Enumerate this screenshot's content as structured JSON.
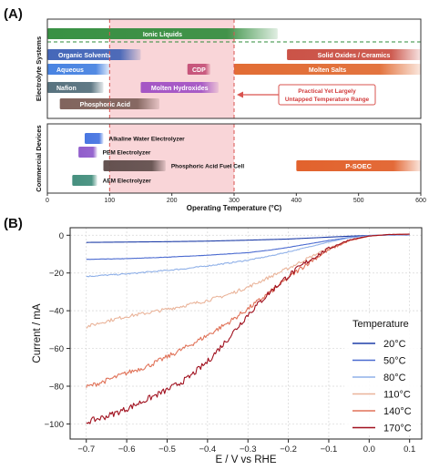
{
  "panels": {
    "a_label": "(A)",
    "b_label": "(B)"
  },
  "chart_data": [
    {
      "type": "range-bar",
      "panel": "A",
      "xlabel": "Operating Temperature (°C)",
      "xlim": [
        0,
        600
      ],
      "xticks": [
        0,
        100,
        200,
        300,
        400,
        500,
        600
      ],
      "highlight_range": [
        100,
        300
      ],
      "groups": [
        {
          "label": "Electrolyte Systems",
          "bars": [
            {
              "label": "Ionic Liquids",
              "start": 0,
              "end": 370,
              "color": "#2e8b3a",
              "label_inside": true
            },
            {
              "label": "Organic Solvents",
              "start": 0,
              "end": 150,
              "color": "#3b5fb5",
              "label_inside": true
            },
            {
              "label": "Solid Oxides / Ceramics",
              "start": 385,
              "end": 600,
              "color": "#c84a3e",
              "label_inside": true
            },
            {
              "label": "Aqueous",
              "start": 0,
              "end": 100,
              "color": "#3f7de0",
              "label_inside": true
            },
            {
              "label": "CDP",
              "start": 225,
              "end": 262,
              "color": "#c44e76",
              "label_inside": true
            },
            {
              "label": "Molten Salts",
              "start": 300,
              "end": 600,
              "color": "#e0652a",
              "label_inside": true
            },
            {
              "label": "Nafion",
              "start": 0,
              "end": 90,
              "color": "#4f6b78",
              "label_inside": true
            },
            {
              "label": "Molten Hydroxides",
              "start": 150,
              "end": 275,
              "color": "#a04fc4",
              "label_inside": true
            },
            {
              "label": "Phosphoric Acid",
              "start": 20,
              "end": 180,
              "color": "#7a5c55",
              "label_inside": true
            }
          ],
          "dashed_line_label": "",
          "annotation": [
            "Practical Yet Largely",
            "Untapped Temperature Range"
          ]
        },
        {
          "label": "Commercial Devices",
          "bars": [
            {
              "label": "Alkaline Water Electrolyzer",
              "start": 60,
              "end": 90,
              "color": "#3f6fe0",
              "label_inside": false
            },
            {
              "label": "PEM Electrolyzer",
              "start": 50,
              "end": 80,
              "color": "#8b55c9",
              "label_inside": false
            },
            {
              "label": "Phosphoric Acid Fuel Cell",
              "start": 90,
              "end": 190,
              "color": "#5c4a48",
              "label_inside": false
            },
            {
              "label": "P-SOEC",
              "start": 400,
              "end": 600,
              "color": "#e05a22",
              "label_inside": true
            },
            {
              "label": "AEM Electrolyzer",
              "start": 40,
              "end": 80,
              "color": "#3c8a78",
              "label_inside": false
            }
          ]
        }
      ]
    },
    {
      "type": "line",
      "panel": "B",
      "xlabel": "E / V vs RHE",
      "ylabel": "Current / mA",
      "xlim": [
        -0.74,
        0.13
      ],
      "ylim": [
        -108,
        4
      ],
      "xticks": [
        -0.7,
        -0.6,
        -0.5,
        -0.4,
        -0.3,
        -0.2,
        -0.1,
        0.0,
        0.1
      ],
      "xtick_labels": [
        "−0.7",
        "−0.6",
        "−0.5",
        "−0.4",
        "−0.3",
        "−0.2",
        "−0.1",
        "0.0",
        "0.1"
      ],
      "yticks": [
        0,
        -20,
        -40,
        -60,
        -80,
        -100
      ],
      "ytick_labels": [
        "0",
        "−20",
        "−40",
        "−60",
        "−80",
        "−100"
      ],
      "grid": true,
      "legend": {
        "title": "Temperature",
        "placement": "right"
      },
      "series": [
        {
          "name": "20°C",
          "color": "#1f3ea8",
          "noise": 0.0,
          "x": [
            -0.7,
            -0.6,
            -0.5,
            -0.4,
            -0.3,
            -0.2,
            -0.1,
            -0.05,
            0.0,
            0.05,
            0.1
          ],
          "y": [
            -3.8,
            -3.6,
            -3.4,
            -3.1,
            -2.6,
            -2.0,
            -1.0,
            -0.5,
            -0.1,
            0.1,
            0.2
          ]
        },
        {
          "name": "50°C",
          "color": "#4a6ad0",
          "noise": 0.1,
          "x": [
            -0.7,
            -0.6,
            -0.5,
            -0.4,
            -0.3,
            -0.25,
            -0.2,
            -0.15,
            -0.1,
            -0.05,
            0.0,
            0.05,
            0.1
          ],
          "y": [
            -12.8,
            -12.4,
            -11.6,
            -10.6,
            -9.2,
            -8.0,
            -6.4,
            -4.6,
            -2.8,
            -1.2,
            -0.2,
            0.2,
            0.3
          ]
        },
        {
          "name": "80°C",
          "color": "#8fb0e8",
          "noise": 0.35,
          "x": [
            -0.7,
            -0.6,
            -0.5,
            -0.45,
            -0.4,
            -0.35,
            -0.3,
            -0.25,
            -0.2,
            -0.15,
            -0.1,
            -0.05,
            0.0,
            0.05,
            0.1
          ],
          "y": [
            -21.8,
            -20.5,
            -18.6,
            -17.6,
            -16.2,
            -14.8,
            -13.2,
            -11.2,
            -8.8,
            -6.2,
            -3.6,
            -1.4,
            -0.2,
            0.3,
            0.4
          ]
        },
        {
          "name": "110°C",
          "color": "#eab49a",
          "noise": 0.9,
          "x": [
            -0.7,
            -0.65,
            -0.6,
            -0.55,
            -0.5,
            -0.45,
            -0.4,
            -0.35,
            -0.3,
            -0.25,
            -0.2,
            -0.15,
            -0.1,
            -0.05,
            0.0,
            0.05,
            0.1
          ],
          "y": [
            -48.5,
            -45.5,
            -43.0,
            -41.2,
            -39.2,
            -37.0,
            -34.5,
            -31.5,
            -27.5,
            -22.5,
            -17.5,
            -12.0,
            -6.8,
            -2.8,
            -0.4,
            0.4,
            0.5
          ]
        },
        {
          "name": "140°C",
          "color": "#e07258",
          "noise": 1.3,
          "x": [
            -0.7,
            -0.65,
            -0.6,
            -0.55,
            -0.5,
            -0.45,
            -0.4,
            -0.35,
            -0.3,
            -0.25,
            -0.2,
            -0.15,
            -0.1,
            -0.05,
            0.0,
            0.05,
            0.1
          ],
          "y": [
            -80.5,
            -77.0,
            -73.0,
            -69.5,
            -64.5,
            -59.0,
            -53.0,
            -46.5,
            -39.0,
            -31.0,
            -22.5,
            -14.5,
            -7.8,
            -3.0,
            -0.5,
            0.4,
            0.6
          ]
        },
        {
          "name": "170°C",
          "color": "#a0101e",
          "noise": 1.6,
          "x": [
            -0.7,
            -0.65,
            -0.6,
            -0.55,
            -0.5,
            -0.45,
            -0.4,
            -0.35,
            -0.3,
            -0.25,
            -0.2,
            -0.15,
            -0.1,
            -0.05,
            0.0,
            0.05,
            0.1
          ],
          "y": [
            -99.0,
            -96.0,
            -92.0,
            -87.0,
            -82.0,
            -76.0,
            -67.0,
            -55.0,
            -42.0,
            -31.0,
            -21.5,
            -13.5,
            -7.0,
            -2.5,
            -0.4,
            0.4,
            0.6
          ]
        }
      ]
    }
  ]
}
